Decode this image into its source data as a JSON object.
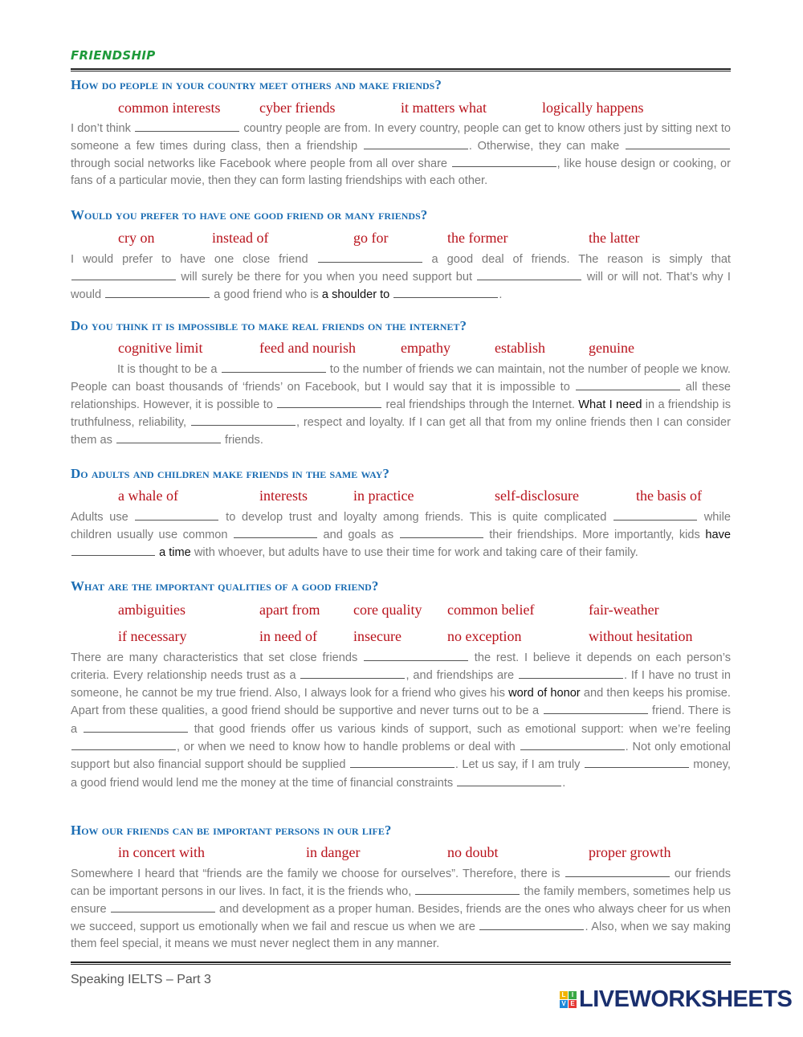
{
  "title": "FRIENDSHIP",
  "sections": [
    {
      "heading": "How do people in your country meet others and make friends?",
      "words": [
        "common interests",
        "cyber friends",
        "it matters what",
        "logically happens"
      ],
      "paragraph": [
        {
          "t": "I don’t think "
        },
        {
          "b": 1
        },
        {
          "t": " country people are from. In every country, people can get to know others just by sitting next to someone a few times during class, then a friendship "
        },
        {
          "b": 1
        },
        {
          "t": ". Otherwise, they can make "
        },
        {
          "b": 1
        },
        {
          "t": " through social networks like Facebook where people from all over share "
        },
        {
          "b": 1
        },
        {
          "t": ", like house design or cooking, or fans of a particular movie, then they can form lasting friendships with each other."
        }
      ]
    },
    {
      "heading": "Would you prefer to have one good friend or many friends?",
      "words": [
        "cry on",
        "instead of",
        "go for",
        "the former",
        "the latter"
      ],
      "paragraph": [
        {
          "t": "I would prefer to have one close friend "
        },
        {
          "b": 1
        },
        {
          "t": " a good deal of friends. The reason is simply that "
        },
        {
          "b": 1
        },
        {
          "t": " will surely be there for you when you need support but "
        },
        {
          "b": 1
        },
        {
          "t": " will or will not. That’s why I would "
        },
        {
          "b": 1
        },
        {
          "t": " a good friend who is "
        },
        {
          "k": "a shoulder to"
        },
        {
          "t": " "
        },
        {
          "b": 1
        },
        {
          "t": "."
        }
      ]
    },
    {
      "heading": "Do you think it is impossible to make real friends on the internet?",
      "words": [
        "cognitive limit",
        "feed and nourish",
        "empathy",
        "establish",
        "genuine"
      ],
      "paragraph": [
        {
          "t": "It is thought to be a "
        },
        {
          "b": 1
        },
        {
          "t": " to the number of friends we can maintain, not the number of people we know. People can boast thousands of ‘friends’ on Facebook, but I would say that it is impossible to "
        },
        {
          "b": 1
        },
        {
          "t": " all these relationships. However, it is possible to "
        },
        {
          "b": 1
        },
        {
          "t": " real friendships through the Internet. "
        },
        {
          "k": "What I need"
        },
        {
          "t": " in a friendship is truthfulness, reliability, "
        },
        {
          "b": 1
        },
        {
          "t": ", respect and loyalty. If I can get all that from my online friends then I can consider them as "
        },
        {
          "b": 1
        },
        {
          "t": " friends."
        }
      ]
    },
    {
      "heading": "Do adults and children make friends in the same way?",
      "words": [
        "a whale of",
        "interests",
        "in practice",
        "self-disclosure",
        "the basis of"
      ],
      "paragraph": [
        {
          "t": "Adults use "
        },
        {
          "b": 1
        },
        {
          "t": " to develop trust and loyalty among friends. This is quite complicated "
        },
        {
          "b": 1
        },
        {
          "t": " while children usually use common "
        },
        {
          "b": 1
        },
        {
          "t": " and goals as "
        },
        {
          "b": 1
        },
        {
          "t": " their friendships. More importantly, kids "
        },
        {
          "k": "have"
        },
        {
          "t": " "
        },
        {
          "b": 1
        },
        {
          "t": " "
        },
        {
          "k": "a time"
        },
        {
          "t": " with whoever, but adults have to use their time for work and taking care of their family."
        }
      ]
    },
    {
      "heading": "What are the important qualities of a good friend?",
      "words": [
        "ambiguities",
        "apart from",
        "core quality",
        "common belief",
        "fair-weather",
        "if necessary",
        "in need of",
        "insecure",
        "no exception",
        "without hesitation"
      ],
      "paragraph": [
        {
          "t": "There are many characteristics that set close friends "
        },
        {
          "b": 1
        },
        {
          "t": " the rest. I believe it depends on each person’s criteria.  Every relationship needs trust as a "
        },
        {
          "b": 1
        },
        {
          "t": ", and friendships are "
        },
        {
          "b": 1
        },
        {
          "t": ". If I have no trust in someone, he cannot be my true friend. Also, I always look for a friend who gives his "
        },
        {
          "k": "word of honor"
        },
        {
          "t": " and then keeps his promise.  Apart from these qualities, a good friend should be supportive and never turns out to be a "
        },
        {
          "b": 1
        },
        {
          "t": " friend. There is a "
        },
        {
          "b": 1
        },
        {
          "t": " that good friends offer us various kinds of support, such as emotional support: when we’re feeling "
        },
        {
          "b": 1
        },
        {
          "t": ", or when we need to know how to handle problems or deal with "
        },
        {
          "b": 1
        },
        {
          "t": ". Not only emotional support but also financial support should be supplied "
        },
        {
          "b": 1
        },
        {
          "t": ". Let us say, if I am truly "
        },
        {
          "b": 1
        },
        {
          "t": " money, a good friend would lend me the money at the time of financial constraints "
        },
        {
          "b": 1
        },
        {
          "t": "."
        }
      ]
    },
    {
      "heading": "How our friends can be important persons in our life?",
      "words": [
        "in concert with",
        "in danger",
        "no doubt",
        "proper growth"
      ],
      "paragraph": [
        {
          "t": "Somewhere I heard that “friends are the family we choose for ourselves”. Therefore, there is "
        },
        {
          "b": 1
        },
        {
          "t": " our friends can be important persons in our lives. In fact, it is the friends who, "
        },
        {
          "b": 1
        },
        {
          "t": " the family members, sometimes help us ensure "
        },
        {
          "b": 1
        },
        {
          "t": " and development as a proper human. Besides, friends are the ones who always cheer for us when we succeed, support us emotionally when we fail and rescue us when we are "
        },
        {
          "b": 1
        },
        {
          "t": ". Also, when we say making them feel special, it means we must never neglect them in any manner."
        }
      ]
    }
  ],
  "footer": "Speaking IELTS – Part 3",
  "logo": {
    "text": "LIVEWORKSHEETS",
    "letters": [
      "L",
      "I",
      "V",
      "E"
    ]
  },
  "colors": {
    "title": "#1e9a3a",
    "heading": "#1b6db3",
    "word_bank": "#b8121b",
    "body_text": "#7a7a7a"
  }
}
